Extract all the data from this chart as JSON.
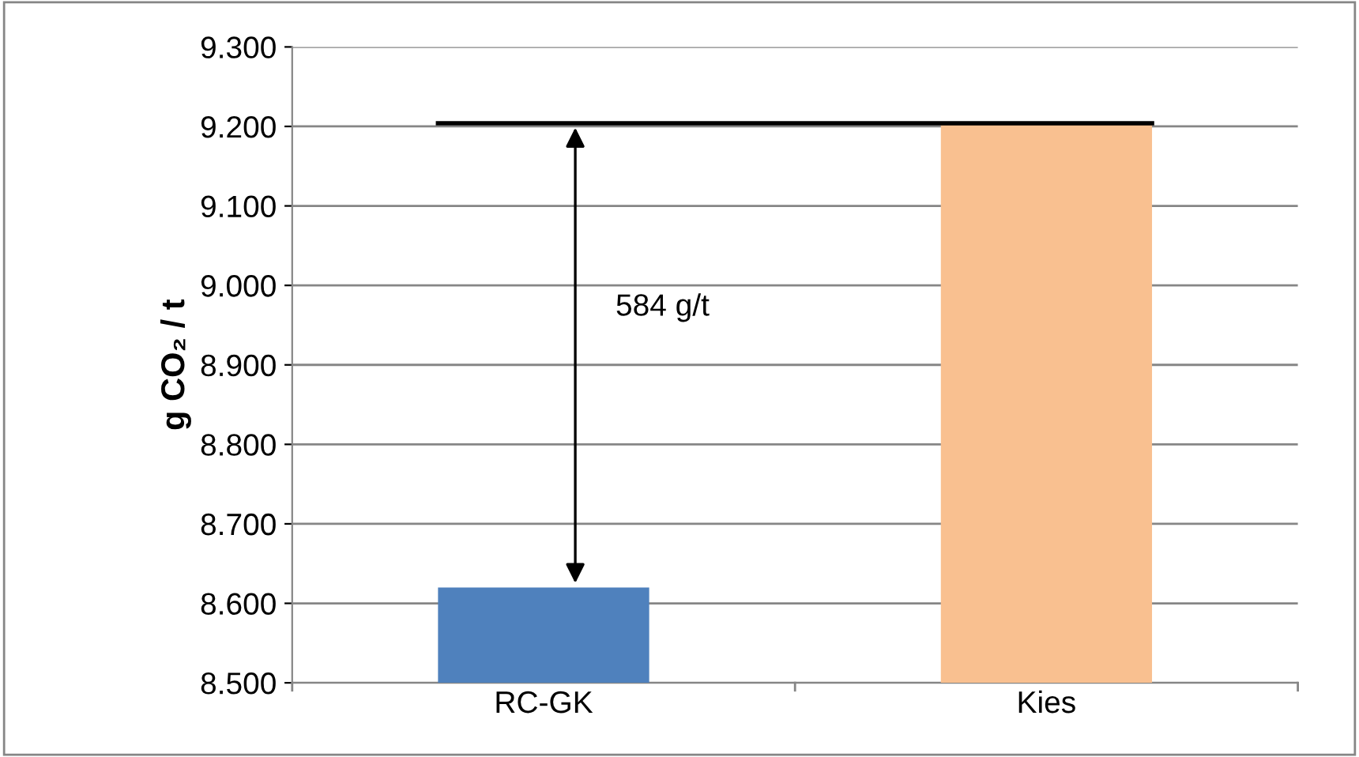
{
  "chart_data": {
    "type": "bar",
    "ylabel": "g CO₂ / t",
    "categories": [
      "RC-GK",
      "Kies"
    ],
    "values": [
      8620,
      9204
    ],
    "colors": [
      "#4f81bd",
      "#f9c090"
    ],
    "ylim": [
      8500,
      9300
    ],
    "yticks": [
      {
        "value": 8500,
        "label": "8.500"
      },
      {
        "value": 8600,
        "label": "8.600"
      },
      {
        "value": 8700,
        "label": "8.700"
      },
      {
        "value": 8800,
        "label": "8.800"
      },
      {
        "value": 8900,
        "label": "8.900"
      },
      {
        "value": 9000,
        "label": "9.000"
      },
      {
        "value": 9100,
        "label": "9.100"
      },
      {
        "value": 9200,
        "label": "9.200"
      },
      {
        "value": 9300,
        "label": "9.300"
      }
    ],
    "grid": "y",
    "ref_lines": [
      {
        "axis": "y",
        "value": 9204,
        "color": "#000000"
      }
    ],
    "annotations": [
      "584 g/t"
    ]
  }
}
